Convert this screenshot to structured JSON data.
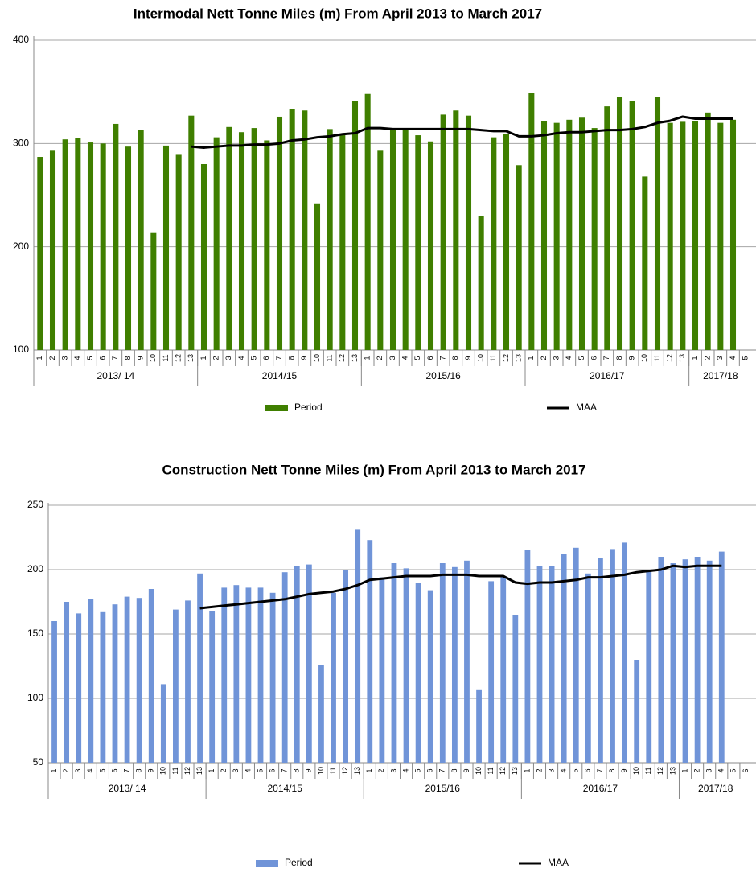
{
  "chart_data": [
    {
      "type": "bar",
      "title": "Intermodal Nett Tonne Miles (m) From April 2013 to March 2017",
      "categories": [
        [
          "1",
          "2013/ 14"
        ],
        [
          "2",
          "2013/ 14"
        ],
        [
          "3",
          "2013/ 14"
        ],
        [
          "4",
          "2013/ 14"
        ],
        [
          "5",
          "2013/ 14"
        ],
        [
          "6",
          "2013/ 14"
        ],
        [
          "7",
          "2013/ 14"
        ],
        [
          "8",
          "2013/ 14"
        ],
        [
          "9",
          "2013/ 14"
        ],
        [
          "10",
          "2013/ 14"
        ],
        [
          "11",
          "2013/ 14"
        ],
        [
          "12",
          "2013/ 14"
        ],
        [
          "13",
          "2013/ 14"
        ],
        [
          "1",
          "2014/15"
        ],
        [
          "2",
          "2014/15"
        ],
        [
          "3",
          "2014/15"
        ],
        [
          "4",
          "2014/15"
        ],
        [
          "5",
          "2014/15"
        ],
        [
          "6",
          "2014/15"
        ],
        [
          "7",
          "2014/15"
        ],
        [
          "8",
          "2014/15"
        ],
        [
          "9",
          "2014/15"
        ],
        [
          "10",
          "2014/15"
        ],
        [
          "11",
          "2014/15"
        ],
        [
          "12",
          "2014/15"
        ],
        [
          "13",
          "2014/15"
        ],
        [
          "1",
          "2015/16"
        ],
        [
          "2",
          "2015/16"
        ],
        [
          "3",
          "2015/16"
        ],
        [
          "4",
          "2015/16"
        ],
        [
          "5",
          "2015/16"
        ],
        [
          "6",
          "2015/16"
        ],
        [
          "7",
          "2015/16"
        ],
        [
          "8",
          "2015/16"
        ],
        [
          "9",
          "2015/16"
        ],
        [
          "10",
          "2015/16"
        ],
        [
          "11",
          "2015/16"
        ],
        [
          "12",
          "2015/16"
        ],
        [
          "13",
          "2015/16"
        ],
        [
          "1",
          "2016/17"
        ],
        [
          "2",
          "2016/17"
        ],
        [
          "3",
          "2016/17"
        ],
        [
          "4",
          "2016/17"
        ],
        [
          "5",
          "2016/17"
        ],
        [
          "6",
          "2016/17"
        ],
        [
          "7",
          "2016/17"
        ],
        [
          "8",
          "2016/17"
        ],
        [
          "9",
          "2016/17"
        ],
        [
          "10",
          "2016/17"
        ],
        [
          "11",
          "2016/17"
        ],
        [
          "12",
          "2016/17"
        ],
        [
          "13",
          "2016/17"
        ],
        [
          "1",
          "2017/18"
        ],
        [
          "2",
          "2017/18"
        ],
        [
          "3",
          "2017/18"
        ],
        [
          "4",
          "2017/18"
        ],
        [
          "5",
          "2017/18"
        ]
      ],
      "series": [
        {
          "name": "Period",
          "type": "bar",
          "color": "#3f7f00",
          "values": [
            287,
            293,
            304,
            305,
            301,
            300,
            319,
            297,
            313,
            214,
            298,
            289,
            327,
            280,
            306,
            316,
            311,
            315,
            303,
            326,
            333,
            332,
            242,
            314,
            309,
            341,
            348,
            293,
            313,
            315,
            308,
            302,
            328,
            332,
            327,
            230,
            306,
            309,
            279,
            349,
            322,
            320,
            323,
            325,
            315,
            336,
            345,
            341,
            268,
            345,
            320,
            321,
            322,
            330,
            320,
            323,
            null
          ]
        },
        {
          "name": "MAA",
          "type": "line",
          "color": "#000000",
          "values": [
            null,
            null,
            null,
            null,
            null,
            null,
            null,
            null,
            null,
            null,
            null,
            null,
            297,
            296,
            297,
            298,
            298,
            299,
            299,
            300,
            303,
            304,
            306,
            307,
            309,
            310,
            315,
            315,
            314,
            314,
            314,
            314,
            314,
            314,
            314,
            313,
            312,
            312,
            307,
            307,
            308,
            310,
            311,
            311,
            312,
            313,
            313,
            314,
            316,
            320,
            322,
            326,
            324,
            324,
            324,
            324,
            null
          ]
        }
      ],
      "ylim": [
        100,
        400
      ],
      "yticks": [
        100,
        200,
        300,
        400
      ],
      "grid": true
    },
    {
      "type": "bar",
      "title": "Construction Nett Tonne Miles (m) From April 2013 to March 2017",
      "categories": [
        [
          "1",
          "2013/ 14"
        ],
        [
          "2",
          "2013/ 14"
        ],
        [
          "3",
          "2013/ 14"
        ],
        [
          "4",
          "2013/ 14"
        ],
        [
          "5",
          "2013/ 14"
        ],
        [
          "6",
          "2013/ 14"
        ],
        [
          "7",
          "2013/ 14"
        ],
        [
          "8",
          "2013/ 14"
        ],
        [
          "9",
          "2013/ 14"
        ],
        [
          "10",
          "2013/ 14"
        ],
        [
          "11",
          "2013/ 14"
        ],
        [
          "12",
          "2013/ 14"
        ],
        [
          "13",
          "2013/ 14"
        ],
        [
          "1",
          "2014/15"
        ],
        [
          "2",
          "2014/15"
        ],
        [
          "3",
          "2014/15"
        ],
        [
          "4",
          "2014/15"
        ],
        [
          "5",
          "2014/15"
        ],
        [
          "6",
          "2014/15"
        ],
        [
          "7",
          "2014/15"
        ],
        [
          "8",
          "2014/15"
        ],
        [
          "9",
          "2014/15"
        ],
        [
          "10",
          "2014/15"
        ],
        [
          "11",
          "2014/15"
        ],
        [
          "12",
          "2014/15"
        ],
        [
          "13",
          "2014/15"
        ],
        [
          "1",
          "2015/16"
        ],
        [
          "2",
          "2015/16"
        ],
        [
          "3",
          "2015/16"
        ],
        [
          "4",
          "2015/16"
        ],
        [
          "5",
          "2015/16"
        ],
        [
          "6",
          "2015/16"
        ],
        [
          "7",
          "2015/16"
        ],
        [
          "8",
          "2015/16"
        ],
        [
          "9",
          "2015/16"
        ],
        [
          "10",
          "2015/16"
        ],
        [
          "11",
          "2015/16"
        ],
        [
          "12",
          "2015/16"
        ],
        [
          "13",
          "2015/16"
        ],
        [
          "1",
          "2016/17"
        ],
        [
          "2",
          "2016/17"
        ],
        [
          "3",
          "2016/17"
        ],
        [
          "4",
          "2016/17"
        ],
        [
          "5",
          "2016/17"
        ],
        [
          "6",
          "2016/17"
        ],
        [
          "7",
          "2016/17"
        ],
        [
          "8",
          "2016/17"
        ],
        [
          "9",
          "2016/17"
        ],
        [
          "10",
          "2016/17"
        ],
        [
          "11",
          "2016/17"
        ],
        [
          "12",
          "2016/17"
        ],
        [
          "13",
          "2016/17"
        ],
        [
          "1",
          "2017/18"
        ],
        [
          "2",
          "2017/18"
        ],
        [
          "3",
          "2017/18"
        ],
        [
          "4",
          "2017/18"
        ],
        [
          "5",
          "2017/18"
        ],
        [
          "6",
          "2017/18"
        ]
      ],
      "series": [
        {
          "name": "Period",
          "type": "bar",
          "color": "#7094d8",
          "values": [
            160,
            175,
            166,
            177,
            167,
            173,
            179,
            178,
            185,
            111,
            169,
            176,
            197,
            168,
            186,
            188,
            186,
            186,
            182,
            198,
            203,
            204,
            126,
            182,
            200,
            231,
            223,
            194,
            205,
            201,
            190,
            184,
            205,
            202,
            207,
            107,
            191,
            195,
            165,
            215,
            203,
            203,
            212,
            217,
            197,
            209,
            216,
            221,
            130,
            199,
            210,
            205,
            208,
            210,
            207,
            214,
            null,
            null
          ]
        },
        {
          "name": "MAA",
          "type": "line",
          "color": "#000000",
          "values": [
            null,
            null,
            null,
            null,
            null,
            null,
            null,
            null,
            null,
            null,
            null,
            null,
            170,
            171,
            172,
            173,
            174,
            175,
            176,
            177,
            179,
            181,
            182,
            183,
            185,
            188,
            192,
            193,
            194,
            195,
            195,
            195,
            196,
            196,
            196,
            195,
            195,
            195,
            190,
            189,
            190,
            190,
            191,
            192,
            194,
            194,
            195,
            196,
            198,
            199,
            200,
            203,
            202,
            203,
            203,
            203,
            null,
            null
          ]
        }
      ],
      "ylim": [
        50,
        250
      ],
      "yticks": [
        50,
        100,
        150,
        200,
        250
      ],
      "grid": true
    }
  ]
}
